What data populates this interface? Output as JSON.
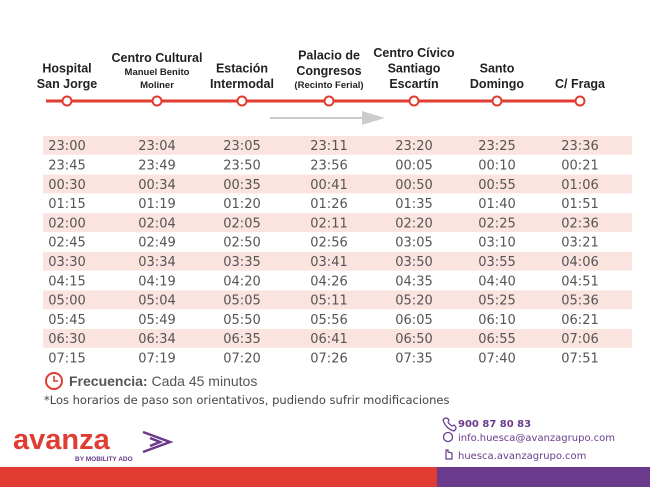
{
  "stops": [
    {
      "lines": [
        "Hospital",
        "San Jorge"
      ],
      "sub": []
    },
    {
      "lines": [
        "Centro Cultural"
      ],
      "sub": [
        "Manuel Benito",
        "Moliner"
      ]
    },
    {
      "lines": [
        "Estación",
        "Intermodal"
      ],
      "sub": []
    },
    {
      "lines": [
        "Palacio de",
        "Congresos"
      ],
      "sub": [
        "(Recinto Ferial)"
      ]
    },
    {
      "lines": [
        "Centro Cívico",
        "Santiago",
        "Escartín"
      ],
      "sub": []
    },
    {
      "lines": [
        "Santo",
        "Domingo"
      ],
      "sub": []
    },
    {
      "lines": [
        "C/ Fraga"
      ],
      "sub": []
    }
  ],
  "table": {
    "rows": [
      [
        "23:00",
        "23:04",
        "23:05",
        "23:11",
        "23:20",
        "23:25",
        "23:36"
      ],
      [
        "23:45",
        "23:49",
        "23:50",
        "23:56",
        "00:05",
        "00:10",
        "00:21"
      ],
      [
        "00:30",
        "00:34",
        "00:35",
        "00:41",
        "00:50",
        "00:55",
        "01:06"
      ],
      [
        "01:15",
        "01:19",
        "01:20",
        "01:26",
        "01:35",
        "01:40",
        "01:51"
      ],
      [
        "02:00",
        "02:04",
        "02:05",
        "02:11",
        "02:20",
        "02:25",
        "02:36"
      ],
      [
        "02:45",
        "02:49",
        "02:50",
        "02:56",
        "03:05",
        "03:10",
        "03:21"
      ],
      [
        "03:30",
        "03:34",
        "03:35",
        "03:41",
        "03:50",
        "03:55",
        "04:06"
      ],
      [
        "04:15",
        "04:19",
        "04:20",
        "04:26",
        "04:35",
        "04:40",
        "04:51"
      ],
      [
        "05:00",
        "05:04",
        "05:05",
        "05:11",
        "05:20",
        "05:25",
        "05:36"
      ],
      [
        "05:45",
        "05:49",
        "05:50",
        "05:56",
        "06:05",
        "06:10",
        "06:21"
      ],
      [
        "06:30",
        "06:34",
        "06:35",
        "06:41",
        "06:50",
        "06:55",
        "07:06"
      ],
      [
        "07:15",
        "07:19",
        "07:20",
        "07:26",
        "07:35",
        "07:40",
        "07:51"
      ]
    ]
  },
  "frequency": {
    "label": "Frecuencia:",
    "value": "Cada 45 minutos"
  },
  "note": "*Los horarios de paso son orientativos, pudiendo sufrir modificaciones",
  "logo": {
    "name": "avanza",
    "by": "BY MOBILITY ADO"
  },
  "contact": {
    "phone": "900 87 80 83",
    "email": "info.huesca@avanzagrupo.com",
    "web": "huesca.avanzagrupo.com"
  }
}
